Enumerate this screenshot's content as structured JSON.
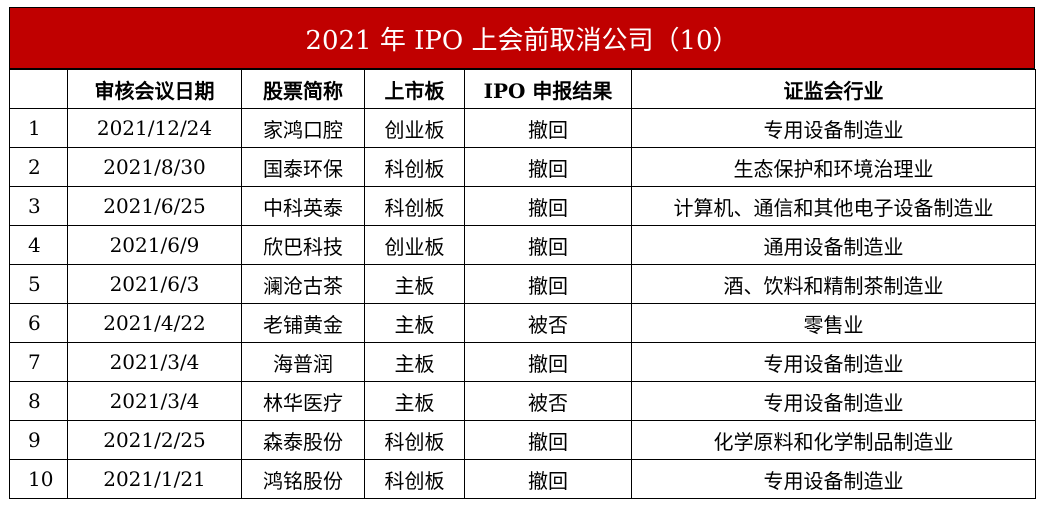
{
  "title": "2021 年 IPO 上会前取消公司（10）",
  "headers": [
    "",
    "审核会议日期",
    "股票简称",
    "上市板",
    "IPO 申报结果",
    "证监会行业"
  ],
  "rows": [
    [
      "1",
      "2021/12/24",
      "家鸿口腔",
      "创业板",
      "撤回",
      "专用设备制造业"
    ],
    [
      "2",
      "2021/8/30",
      "国泰环保",
      "科创板",
      "撤回",
      "生态保护和环境治理业"
    ],
    [
      "3",
      "2021/6/25",
      "中科英泰",
      "科创板",
      "撤回",
      "计算机、通信和其他电子设备制造业"
    ],
    [
      "4",
      "2021/6/9",
      "欣巴科技",
      "创业板",
      "撤回",
      "通用设备制造业"
    ],
    [
      "5",
      "2021/6/3",
      "澜沧古茶",
      "主板",
      "撤回",
      "酒、饮料和精制茶制造业"
    ],
    [
      "6",
      "2021/4/22",
      "老铺黄金",
      "主板",
      "被否",
      "零售业"
    ],
    [
      "7",
      "2021/3/4",
      "海普润",
      "主板",
      "撤回",
      "专用设备制造业"
    ],
    [
      "8",
      "2021/3/4",
      "林华医疗",
      "主板",
      "被否",
      "专用设备制造业"
    ],
    [
      "9",
      "2021/2/25",
      "森泰股份",
      "科创板",
      "撤回",
      "化学原料和化学制品制造业"
    ],
    [
      "10",
      "2021/1/21",
      "鸿铭股份",
      "科创板",
      "撤回",
      "专用设备制造业"
    ]
  ]
}
